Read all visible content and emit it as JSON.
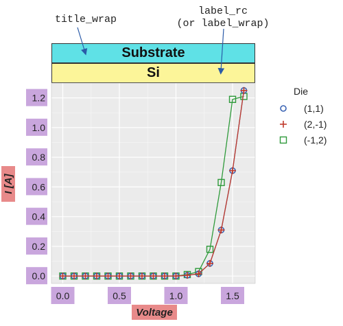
{
  "annotations": {
    "title_wrap": "title_wrap",
    "label_rc_line1": "label_rc",
    "label_rc_line2": "(or label_wrap)"
  },
  "facet": {
    "title": "Substrate",
    "label": "Si"
  },
  "colors": {
    "title_bg": "#5fe1e6",
    "label_bg": "#fcf599",
    "tick_bg": "#c9a6dd",
    "axis_label_bg": "#e88a8a",
    "panel_bg": "#ebebeb",
    "series": [
      "#3a63b3",
      "#c0392b",
      "#2e9a3a"
    ]
  },
  "chart_data": {
    "type": "line",
    "xlabel": "Voltage",
    "ylabel": "I [A]",
    "xlim": [
      -0.1,
      1.7
    ],
    "ylim": [
      -0.05,
      1.3
    ],
    "xticks": [
      "0.0",
      "0.5",
      "1.0",
      "1.5"
    ],
    "yticks": [
      "0.0",
      "0.2",
      "0.4",
      "0.6",
      "0.8",
      "1.0",
      "1.2"
    ],
    "grid": true,
    "legend_title": "Die",
    "legend_position": "right",
    "series": [
      {
        "name": "(1,1)",
        "marker": "circle",
        "x": [
          0.0,
          0.1,
          0.2,
          0.3,
          0.4,
          0.5,
          0.6,
          0.7,
          0.8,
          0.9,
          1.0,
          1.1,
          1.2,
          1.3,
          1.4,
          1.5,
          1.6
        ],
        "y": [
          0,
          0,
          0,
          0,
          0,
          0,
          0,
          0,
          0,
          0,
          0,
          0.005,
          0.015,
          0.085,
          0.31,
          0.71,
          1.25
        ]
      },
      {
        "name": "(2,-1)",
        "marker": "plus",
        "x": [
          0.0,
          0.1,
          0.2,
          0.3,
          0.4,
          0.5,
          0.6,
          0.7,
          0.8,
          0.9,
          1.0,
          1.1,
          1.2,
          1.3,
          1.4,
          1.5,
          1.6
        ],
        "y": [
          0,
          0,
          0,
          0,
          0,
          0,
          0,
          0,
          0,
          0,
          0,
          0.005,
          0.015,
          0.085,
          0.31,
          0.71,
          1.25
        ]
      },
      {
        "name": "(-1,2)",
        "marker": "square",
        "x": [
          0.0,
          0.1,
          0.2,
          0.3,
          0.4,
          0.5,
          0.6,
          0.7,
          0.8,
          0.9,
          1.0,
          1.1,
          1.2,
          1.3,
          1.4,
          1.5,
          1.6
        ],
        "y": [
          0,
          0,
          0,
          0,
          0,
          0,
          0,
          0,
          0,
          0,
          0,
          0.01,
          0.03,
          0.18,
          0.63,
          1.19,
          1.21
        ]
      }
    ]
  }
}
